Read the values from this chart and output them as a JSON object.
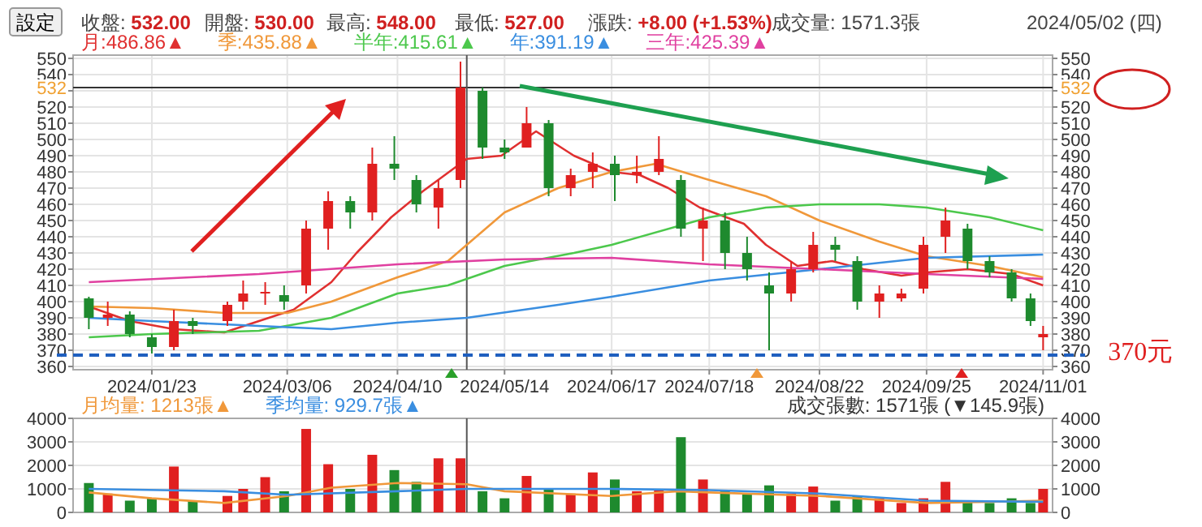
{
  "chart_data": [
    {
      "type": "candlestick",
      "x": [
        "2024-01-03",
        "2024-01-09",
        "2024-01-16",
        "2024-01-23",
        "2024-01-30",
        "2024-02-05",
        "2024-02-16",
        "2024-02-21",
        "2024-02-28",
        "2024-03-05",
        "2024-03-12",
        "2024-03-19",
        "2024-03-26",
        "2024-04-02",
        "2024-04-09",
        "2024-04-16",
        "2024-04-23",
        "2024-04-30",
        "2024-05-07",
        "2024-05-14",
        "2024-05-21",
        "2024-05-28",
        "2024-06-04",
        "2024-06-11",
        "2024-06-18",
        "2024-06-25",
        "2024-07-02",
        "2024-07-09",
        "2024-07-16",
        "2024-07-23",
        "2024-07-30",
        "2024-08-06",
        "2024-08-13",
        "2024-08-20",
        "2024-08-27",
        "2024-09-03",
        "2024-09-10",
        "2024-09-17",
        "2024-09-24",
        "2024-10-01",
        "2024-10-08",
        "2024-10-15",
        "2024-10-22",
        "2024-10-28",
        "2024-11-01"
      ],
      "ohlc": [
        [
          402,
          403,
          383,
          390
        ],
        [
          390,
          400,
          385,
          392
        ],
        [
          392,
          394,
          378,
          380
        ],
        [
          378,
          380,
          368,
          372
        ],
        [
          372,
          395,
          370,
          388
        ],
        [
          388,
          390,
          380,
          385
        ],
        [
          388,
          400,
          385,
          398
        ],
        [
          400,
          413,
          395,
          405
        ],
        [
          405,
          412,
          398,
          406
        ],
        [
          404,
          410,
          395,
          400
        ],
        [
          410,
          450,
          405,
          445
        ],
        [
          445,
          468,
          432,
          462
        ],
        [
          462,
          465,
          445,
          455
        ],
        [
          455,
          495,
          450,
          485
        ],
        [
          485,
          502,
          475,
          482
        ],
        [
          475,
          478,
          455,
          460
        ],
        [
          458,
          475,
          445,
          470
        ],
        [
          475,
          548,
          470,
          532
        ],
        [
          530,
          532,
          488,
          495
        ],
        [
          495,
          500,
          488,
          492
        ],
        [
          495,
          520,
          495,
          510
        ],
        [
          510,
          512,
          465,
          470
        ],
        [
          470,
          482,
          465,
          478
        ],
        [
          480,
          492,
          470,
          485
        ],
        [
          485,
          490,
          462,
          478
        ],
        [
          478,
          490,
          473,
          480
        ],
        [
          480,
          502,
          478,
          488
        ],
        [
          475,
          478,
          440,
          445
        ],
        [
          445,
          458,
          425,
          450
        ],
        [
          450,
          455,
          420,
          430
        ],
        [
          430,
          440,
          413,
          420
        ],
        [
          410,
          418,
          370,
          405
        ],
        [
          405,
          425,
          400,
          420
        ],
        [
          420,
          443,
          418,
          435
        ],
        [
          435,
          440,
          425,
          432
        ],
        [
          425,
          428,
          395,
          400
        ],
        [
          400,
          410,
          390,
          405
        ],
        [
          402,
          408,
          400,
          405
        ],
        [
          408,
          440,
          405,
          435
        ],
        [
          440,
          458,
          430,
          450
        ],
        [
          445,
          448,
          420,
          425
        ],
        [
          425,
          428,
          415,
          418
        ],
        [
          418,
          420,
          400,
          402
        ],
        [
          402,
          405,
          385,
          388
        ],
        [
          378,
          385,
          370,
          380
        ]
      ],
      "colors": [
        "#1e8a2e",
        "#e02020",
        "#1e8a2e",
        "#1e8a2e",
        "#e02020",
        "#1e8a2e",
        "#e02020",
        "#e02020",
        "#e02020",
        "#1e8a2e",
        "#e02020",
        "#e02020",
        "#1e8a2e",
        "#e02020",
        "#1e8a2e",
        "#1e8a2e",
        "#e02020",
        "#e02020",
        "#1e8a2e",
        "#1e8a2e",
        "#e02020",
        "#1e8a2e",
        "#e02020",
        "#e02020",
        "#1e8a2e",
        "#e02020",
        "#e02020",
        "#1e8a2e",
        "#e02020",
        "#1e8a2e",
        "#1e8a2e",
        "#1e8a2e",
        "#e02020",
        "#e02020",
        "#1e8a2e",
        "#1e8a2e",
        "#e02020",
        "#e02020",
        "#e02020",
        "#e02020",
        "#1e8a2e",
        "#1e8a2e",
        "#1e8a2e",
        "#1e8a2e",
        "#e02020"
      ],
      "series": [
        {
          "type": "line",
          "name": "月:486.86▲",
          "color": "#e03030",
          "x": [
            "2024-01-03",
            "2024-01-16",
            "2024-01-30",
            "2024-02-15",
            "2024-02-26",
            "2024-03-08",
            "2024-03-20",
            "2024-03-28",
            "2024-04-08",
            "2024-04-18",
            "2024-05-02",
            "2024-05-13",
            "2024-05-24",
            "2024-06-05",
            "2024-06-17",
            "2024-06-26",
            "2024-07-05",
            "2024-07-15",
            "2024-07-29",
            "2024-08-05",
            "2024-08-15",
            "2024-08-26",
            "2024-09-05",
            "2024-09-17",
            "2024-09-25",
            "2024-10-08",
            "2024-10-22",
            "2024-11-01"
          ],
          "values": [
            397,
            388,
            383,
            381,
            388,
            395,
            412,
            430,
            452,
            468,
            488,
            490,
            505,
            490,
            480,
            478,
            470,
            458,
            448,
            435,
            422,
            425,
            420,
            416,
            418,
            420,
            417,
            410
          ]
        },
        {
          "type": "line",
          "name": "季:435.88▲",
          "color": "#f0983a",
          "x": [
            "2024-01-03",
            "2024-01-23",
            "2024-02-15",
            "2024-03-06",
            "2024-03-20",
            "2024-04-10",
            "2024-04-26",
            "2024-05-14",
            "2024-05-31",
            "2024-06-17",
            "2024-07-01",
            "2024-07-18",
            "2024-08-05",
            "2024-08-22",
            "2024-09-10",
            "2024-09-25",
            "2024-10-15",
            "2024-11-01"
          ],
          "values": [
            397,
            396,
            393,
            393,
            400,
            415,
            425,
            455,
            470,
            480,
            485,
            475,
            465,
            450,
            437,
            428,
            422,
            415
          ]
        },
        {
          "type": "line",
          "name": "半年:415.61▲",
          "color": "#4cc84c",
          "x": [
            "2024-01-03",
            "2024-01-23",
            "2024-02-26",
            "2024-03-20",
            "2024-04-10",
            "2024-04-26",
            "2024-05-14",
            "2024-06-05",
            "2024-06-17",
            "2024-07-18",
            "2024-08-05",
            "2024-08-22",
            "2024-09-10",
            "2024-09-25",
            "2024-10-15",
            "2024-11-01"
          ],
          "values": [
            378,
            380,
            382,
            390,
            405,
            410,
            422,
            430,
            435,
            452,
            458,
            460,
            460,
            458,
            452,
            444
          ]
        },
        {
          "type": "line",
          "name": "年:391.19▲",
          "color": "#3a8ee0",
          "x": [
            "2024-01-03",
            "2024-01-23",
            "2024-02-26",
            "2024-03-20",
            "2024-04-10",
            "2024-05-02",
            "2024-05-31",
            "2024-06-17",
            "2024-07-18",
            "2024-08-22",
            "2024-09-25",
            "2024-11-01"
          ],
          "values": [
            390,
            388,
            385,
            383,
            387,
            390,
            398,
            403,
            413,
            420,
            427,
            429
          ]
        },
        {
          "type": "line",
          "name": "三年:425.39▲",
          "color": "#e040a0",
          "x": [
            "2024-01-03",
            "2024-02-26",
            "2024-04-10",
            "2024-05-14",
            "2024-06-17",
            "2024-07-18",
            "2024-08-22",
            "2024-09-25",
            "2024-11-01"
          ],
          "values": [
            412,
            417,
            423,
            426,
            427,
            423,
            420,
            417,
            414
          ]
        }
      ],
      "xlim": [
        "2023-12-29",
        "2024-11-04"
      ],
      "xticks": [
        {
          "value": "2024-01-23",
          "label": "2024/01/23"
        },
        {
          "value": "2024-03-06",
          "label": "2024/03/06"
        },
        {
          "value": "2024-04-10",
          "label": "2024/04/10"
        },
        {
          "value": "2024-05-14",
          "label": "2024/05/14"
        },
        {
          "value": "2024-06-17",
          "label": "2024/06/17"
        },
        {
          "value": "2024-07-18",
          "label": "2024/07/18"
        },
        {
          "value": "2024-08-22",
          "label": "2024/08/22"
        },
        {
          "value": "2024-09-25",
          "label": "2024/09/25"
        },
        {
          "value": "2024-11-01",
          "label": "2024/11/01"
        }
      ],
      "ylim": [
        358,
        552
      ],
      "yticks": [
        360,
        370,
        380,
        390,
        400,
        410,
        420,
        430,
        440,
        450,
        460,
        470,
        480,
        490,
        500,
        510,
        520,
        {
          "value": 530,
          "label": null
        },
        540,
        550
      ],
      "y2lim": [
        358,
        552
      ],
      "y2ticks": [
        360,
        370,
        380,
        390,
        400,
        410,
        420,
        430,
        440,
        450,
        460,
        470,
        480,
        490,
        500,
        510,
        520,
        {
          "value": 530,
          "label": null
        },
        540,
        550
      ],
      "ref_lines": [
        {
          "axis": "y",
          "value": 532,
          "label": "532",
          "color": "#333333"
        },
        {
          "axis": "x",
          "value": "2024-05-02",
          "color": "#555555"
        },
        {
          "axis": "y",
          "value": 367,
          "color": "#1f5fbf",
          "line_style": "dashed"
        }
      ],
      "annotations": [
        "設定",
        "收盤: 532.00",
        "開盤: 530.00",
        "最高: 548.00",
        "最低: 527.00",
        "漲跌: +8.00 (+1.53%)",
        "成交量: 1571.3張",
        "2024/05/02 (四)",
        {
          "text": "370元",
          "x": "2024-11-01",
          "y": 370
        }
      ],
      "grid": true,
      "legend": "top left"
    },
    {
      "type": "bar",
      "series": [
        {
          "x": [
            "2024-01-03",
            "2024-01-09",
            "2024-01-16",
            "2024-01-23",
            "2024-01-30",
            "2024-02-05",
            "2024-02-16",
            "2024-02-21",
            "2024-02-28",
            "2024-03-05",
            "2024-03-12",
            "2024-03-19",
            "2024-03-26",
            "2024-04-02",
            "2024-04-09",
            "2024-04-16",
            "2024-04-23",
            "2024-04-30",
            "2024-05-07",
            "2024-05-14",
            "2024-05-21",
            "2024-05-28",
            "2024-06-04",
            "2024-06-11",
            "2024-06-18",
            "2024-06-25",
            "2024-07-02",
            "2024-07-09",
            "2024-07-16",
            "2024-07-23",
            "2024-07-30",
            "2024-08-06",
            "2024-08-13",
            "2024-08-20",
            "2024-08-27",
            "2024-09-03",
            "2024-09-10",
            "2024-09-17",
            "2024-09-24",
            "2024-10-01",
            "2024-10-08",
            "2024-10-15",
            "2024-10-22",
            "2024-10-28",
            "2024-11-01"
          ],
          "values": [
            1250,
            800,
            500,
            600,
            1950,
            500,
            700,
            1000,
            1500,
            900,
            3550,
            2050,
            1000,
            2450,
            1800,
            1300,
            2300,
            2300,
            900,
            600,
            1550,
            1000,
            800,
            1700,
            1400,
            900,
            1000,
            3200,
            1400,
            900,
            800,
            1150,
            800,
            1100,
            500,
            700,
            600,
            400,
            600,
            1300,
            500,
            400,
            600,
            400,
            1000
          ],
          "colors": [
            "#1e8a2e",
            "#e02020",
            "#1e8a2e",
            "#1e8a2e",
            "#e02020",
            "#1e8a2e",
            "#e02020",
            "#e02020",
            "#e02020",
            "#1e8a2e",
            "#e02020",
            "#e02020",
            "#1e8a2e",
            "#e02020",
            "#1e8a2e",
            "#1e8a2e",
            "#e02020",
            "#e02020",
            "#1e8a2e",
            "#1e8a2e",
            "#e02020",
            "#1e8a2e",
            "#e02020",
            "#e02020",
            "#1e8a2e",
            "#e02020",
            "#e02020",
            "#1e8a2e",
            "#e02020",
            "#1e8a2e",
            "#1e8a2e",
            "#1e8a2e",
            "#e02020",
            "#e02020",
            "#1e8a2e",
            "#1e8a2e",
            "#e02020",
            "#e02020",
            "#e02020",
            "#e02020",
            "#1e8a2e",
            "#1e8a2e",
            "#1e8a2e",
            "#1e8a2e",
            "#e02020"
          ]
        },
        {
          "type": "line",
          "name": "月均量: 1213張▲",
          "color": "#f0983a",
          "x": [
            "2024-01-03",
            "2024-01-23",
            "2024-02-15",
            "2024-03-06",
            "2024-03-20",
            "2024-04-10",
            "2024-05-02",
            "2024-05-14",
            "2024-06-17",
            "2024-07-08",
            "2024-07-18",
            "2024-08-22",
            "2024-09-25",
            "2024-10-15",
            "2024-11-01"
          ],
          "values": [
            850,
            600,
            400,
            700,
            1050,
            1250,
            1200,
            900,
            700,
            900,
            850,
            700,
            400,
            450,
            500
          ]
        },
        {
          "type": "line",
          "name": "季均量: 929.7張▲",
          "color": "#3a8ee0",
          "x": [
            "2024-01-03",
            "2024-02-15",
            "2024-03-06",
            "2024-04-10",
            "2024-05-02",
            "2024-06-17",
            "2024-07-18",
            "2024-08-22",
            "2024-09-25",
            "2024-11-01"
          ],
          "values": [
            1000,
            900,
            750,
            900,
            1000,
            1000,
            950,
            800,
            500,
            450
          ]
        }
      ],
      "xlim": [
        "2023-12-29",
        "2024-11-04"
      ],
      "ylim": [
        0,
        4000
      ],
      "yticks": [
        0,
        1000,
        2000,
        3000,
        4000
      ],
      "y2lim": [
        0,
        4000
      ],
      "y2ticks": [
        0,
        1000,
        2000,
        3000,
        4000
      ],
      "tick_labels": "y",
      "ref_lines": [
        {
          "axis": "x",
          "value": "2024-05-02",
          "color": "#555555"
        }
      ],
      "annotations": [
        "成交張數: 1571張 (▼145.9張)"
      ],
      "grid": true,
      "legend": "top left"
    }
  ]
}
